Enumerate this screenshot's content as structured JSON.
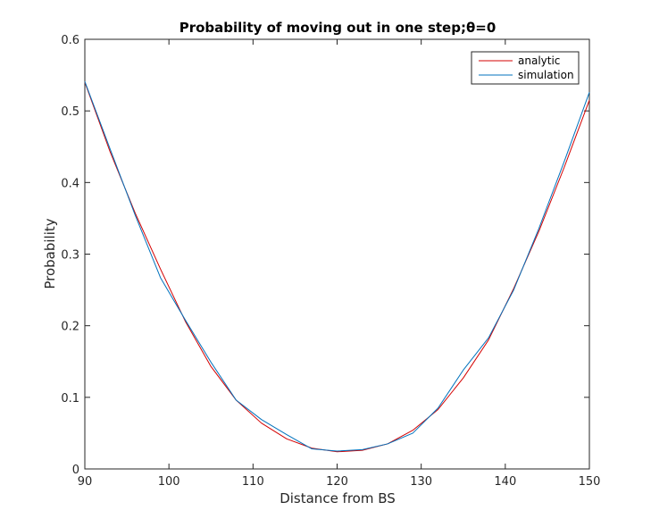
{
  "chart_data": {
    "type": "line",
    "title": "Probability of moving out in one step;θ=0",
    "xlabel": "Distance from BS",
    "ylabel": "Probability",
    "xlim": [
      90,
      150
    ],
    "ylim": [
      0,
      0.6
    ],
    "xticks": [
      90,
      100,
      110,
      120,
      130,
      140,
      150
    ],
    "yticks": [
      0,
      0.1,
      0.2,
      0.3,
      0.4,
      0.5,
      0.6
    ],
    "xtick_labels": [
      "90",
      "100",
      "110",
      "120",
      "130",
      "140",
      "150"
    ],
    "ytick_labels": [
      "0",
      "0.1",
      "0.2",
      "0.3",
      "0.4",
      "0.5",
      "0.6"
    ],
    "grid": false,
    "legend_position": "top-right",
    "series": [
      {
        "name": "analytic",
        "color": "#d40000",
        "x": [
          90,
          93,
          96,
          99,
          102,
          105,
          108,
          111,
          114,
          117,
          120,
          123,
          126,
          129,
          132,
          135,
          138,
          141,
          144,
          147,
          150
        ],
        "y": [
          0.54,
          0.443,
          0.357,
          0.279,
          0.205,
          0.143,
          0.096,
          0.064,
          0.042,
          0.029,
          0.024,
          0.026,
          0.035,
          0.054,
          0.083,
          0.127,
          0.18,
          0.252,
          0.332,
          0.421,
          0.515
        ]
      },
      {
        "name": "simulation",
        "color": "#0072bd",
        "x": [
          90,
          93,
          96,
          99,
          102,
          105,
          108,
          111,
          114,
          117,
          120,
          123,
          126,
          129,
          132,
          135,
          138,
          141,
          144,
          147,
          150
        ],
        "y": [
          0.541,
          0.447,
          0.354,
          0.267,
          0.207,
          0.149,
          0.096,
          0.069,
          0.048,
          0.028,
          0.025,
          0.027,
          0.035,
          0.05,
          0.085,
          0.138,
          0.183,
          0.25,
          0.336,
          0.429,
          0.526
        ]
      }
    ]
  }
}
